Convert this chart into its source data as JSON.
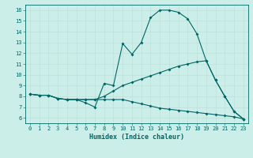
{
  "xlabel": "Humidex (Indice chaleur)",
  "ylabel": "",
  "bg_color": "#cceee8",
  "grid_color": "#bbdddd",
  "line_color": "#006666",
  "xlim": [
    -0.5,
    23.5
  ],
  "ylim": [
    5.5,
    16.5
  ],
  "xticks": [
    0,
    1,
    2,
    3,
    4,
    5,
    6,
    7,
    8,
    9,
    10,
    11,
    12,
    13,
    14,
    15,
    16,
    17,
    18,
    19,
    20,
    21,
    22,
    23
  ],
  "yticks": [
    6,
    7,
    8,
    9,
    10,
    11,
    12,
    13,
    14,
    15,
    16
  ],
  "line1_x": [
    0,
    1,
    2,
    3,
    4,
    5,
    6,
    7,
    8,
    9,
    10,
    11,
    12,
    13,
    14,
    15,
    16,
    17,
    18,
    19,
    20,
    21,
    22,
    23
  ],
  "line1_y": [
    8.2,
    8.1,
    8.1,
    7.8,
    7.7,
    7.7,
    7.4,
    7.0,
    9.2,
    9.0,
    12.9,
    11.9,
    13.0,
    15.3,
    16.0,
    16.0,
    15.8,
    15.2,
    13.8,
    11.3,
    9.5,
    8.0,
    6.6,
    5.9
  ],
  "line2_x": [
    0,
    1,
    2,
    3,
    4,
    5,
    6,
    7,
    8,
    9,
    10,
    11,
    12,
    13,
    14,
    15,
    16,
    17,
    18,
    19,
    20,
    21,
    22,
    23
  ],
  "line2_y": [
    8.2,
    8.1,
    8.1,
    7.8,
    7.7,
    7.7,
    7.7,
    7.7,
    8.0,
    8.5,
    9.0,
    9.3,
    9.6,
    9.9,
    10.2,
    10.5,
    10.8,
    11.0,
    11.2,
    11.3,
    9.5,
    8.0,
    6.6,
    5.9
  ],
  "line3_x": [
    0,
    1,
    2,
    3,
    4,
    5,
    6,
    7,
    8,
    9,
    10,
    11,
    12,
    13,
    14,
    15,
    16,
    17,
    18,
    19,
    20,
    21,
    22,
    23
  ],
  "line3_y": [
    8.2,
    8.1,
    8.1,
    7.8,
    7.7,
    7.7,
    7.7,
    7.7,
    7.7,
    7.7,
    7.7,
    7.5,
    7.3,
    7.1,
    6.9,
    6.8,
    6.7,
    6.6,
    6.5,
    6.4,
    6.3,
    6.2,
    6.1,
    5.9
  ],
  "tick_fontsize": 5.0,
  "xlabel_fontsize": 6.0,
  "marker_size": 2.0,
  "line_width": 0.8
}
